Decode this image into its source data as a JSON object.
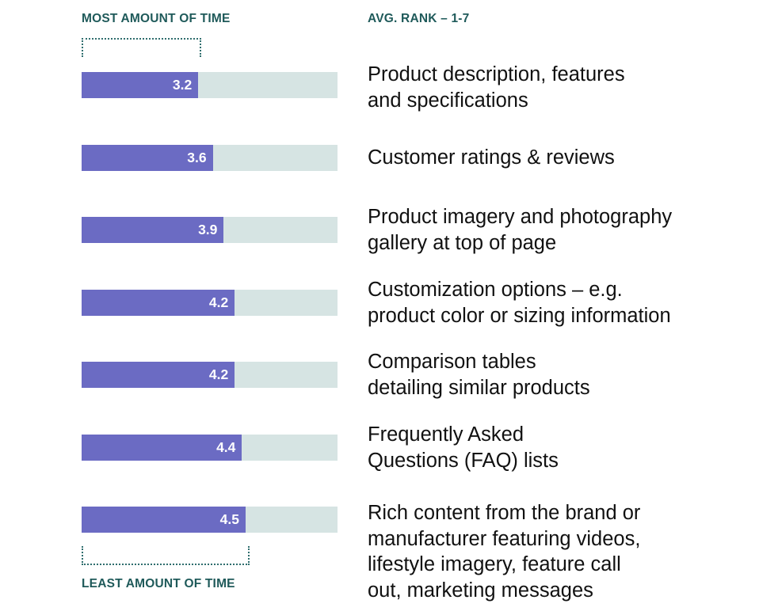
{
  "colors": {
    "header_text": "#1f5a5a",
    "bar_fill": "#6b6bc3",
    "track": "#d6e4e3",
    "bracket": "#2f6e6e"
  },
  "headers": {
    "left": "MOST AMOUNT OF TIME",
    "right": "AVG. RANK – 1-7",
    "bottom": "LEAST AMOUNT OF TIME"
  },
  "chart_data": {
    "type": "bar",
    "orientation": "horizontal",
    "scale": "avg rank 1-7",
    "grid": false,
    "categories": [
      "Product description, features\nand specifications",
      "Customer ratings & reviews",
      "Product imagery and photography\ngallery at top of page",
      "Customization options – e.g.\nproduct color or sizing information",
      "Comparison tables\ndetailing similar products",
      "Frequently Asked\nQuestions (FAQ) lists",
      "Rich content from the brand or\nmanufacturer featuring videos,\nlifestyle imagery, feature call\nout, marketing messages"
    ],
    "values": [
      3.2,
      3.6,
      3.9,
      4.2,
      4.2,
      4.4,
      4.5
    ],
    "value_labels": [
      "3.2",
      "3.6",
      "3.9",
      "4.2",
      "4.2",
      "4.4",
      "4.5"
    ]
  }
}
